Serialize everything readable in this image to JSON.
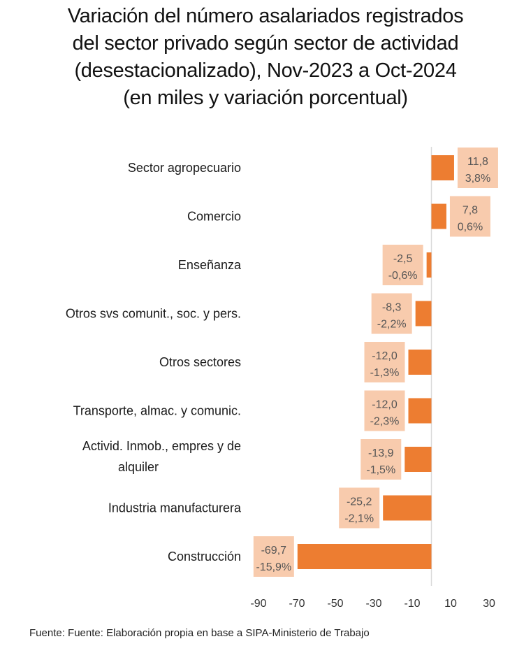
{
  "chart_data": {
    "type": "bar",
    "orientation": "horizontal",
    "title": [
      "Variación del número asalariados registrados",
      "del sector privado según sector de actividad",
      "(desestacionalizado), Nov-2023 a Oct-2024",
      "(en miles y variación porcentual)"
    ],
    "categories": [
      [
        "Sector agropecuario"
      ],
      [
        "Comercio"
      ],
      [
        "Enseñanza"
      ],
      [
        "Otros svs comunit., soc. y pers."
      ],
      [
        "Otros sectores"
      ],
      [
        "Transporte, almac. y comunic."
      ],
      [
        "Activid. Inmob., empres y de",
        "alquiler"
      ],
      [
        "Industria manufacturera"
      ],
      [
        "Construcción"
      ]
    ],
    "values": [
      11.8,
      7.8,
      -2.5,
      -8.3,
      -12.0,
      -12.0,
      -13.9,
      -25.2,
      -69.7
    ],
    "value_labels": [
      "11,8",
      "7,8",
      "-2,5",
      "-8,3",
      "-12,0",
      "-12,0",
      "-13,9",
      "-25,2",
      "-69,7"
    ],
    "pct_labels": [
      "3,8%",
      "0,6%",
      "-0,6%",
      "-2,2%",
      "-1,3%",
      "-2,3%",
      "-1,5%",
      "-2,1%",
      "-15,9%"
    ],
    "pct_values": [
      3.8,
      0.6,
      -0.6,
      -2.2,
      -1.3,
      -2.3,
      -1.5,
      -2.1,
      -15.9
    ],
    "xlim": [
      -90,
      30
    ],
    "xticks": [
      -90,
      -70,
      -50,
      -30,
      -10,
      10,
      30
    ],
    "xtick_labels": [
      "-90",
      "-70",
      "-50",
      "-30",
      "-10",
      "10",
      "30"
    ],
    "xlabel": "",
    "ylabel": "",
    "grid": false,
    "legend": "none",
    "units": "miles",
    "colors": {
      "bar": "#ED7D31",
      "label_box": "#F8CBAD",
      "zero_line": "#D9D9D9"
    }
  },
  "footer": "Fuente: Fuente: Elaboración propia en base a SIPA-Ministerio de Trabajo"
}
